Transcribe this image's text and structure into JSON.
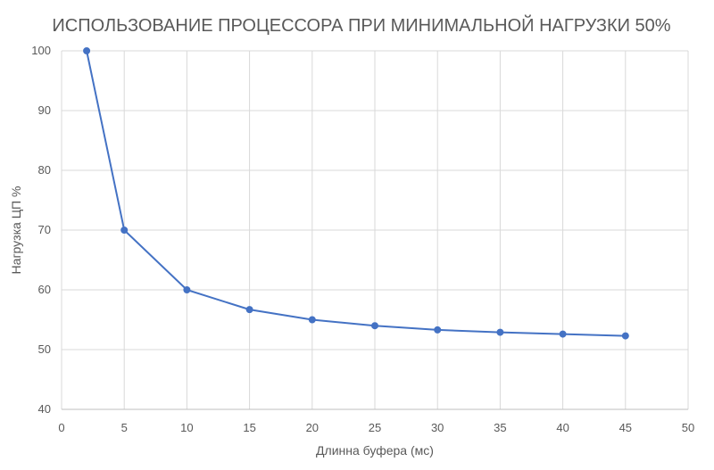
{
  "chart_data": {
    "type": "scatter",
    "title": "ИСПОЛЬЗОВАНИЕ ПРОЦЕССОРА ПРИ МИНИМАЛЬНОЙ НАГРУЗКИ 50%",
    "xlabel": "Длинна буфера (мс)",
    "ylabel": "Нагрузка ЦП %",
    "xlim": [
      0,
      50
    ],
    "ylim": [
      40,
      100
    ],
    "xticks": [
      0,
      5,
      10,
      15,
      20,
      25,
      30,
      35,
      40,
      45,
      50
    ],
    "yticks": [
      40,
      50,
      60,
      70,
      80,
      90,
      100
    ],
    "grid": "vertical and horizontal",
    "legend": "none",
    "series": [
      {
        "color": "#4472c4",
        "x": [
          2,
          5,
          10,
          15,
          20,
          25,
          30,
          35,
          40,
          45
        ],
        "y": [
          100,
          70,
          60,
          56.7,
          55,
          54,
          53.3,
          52.9,
          52.6,
          52.3
        ]
      }
    ]
  }
}
